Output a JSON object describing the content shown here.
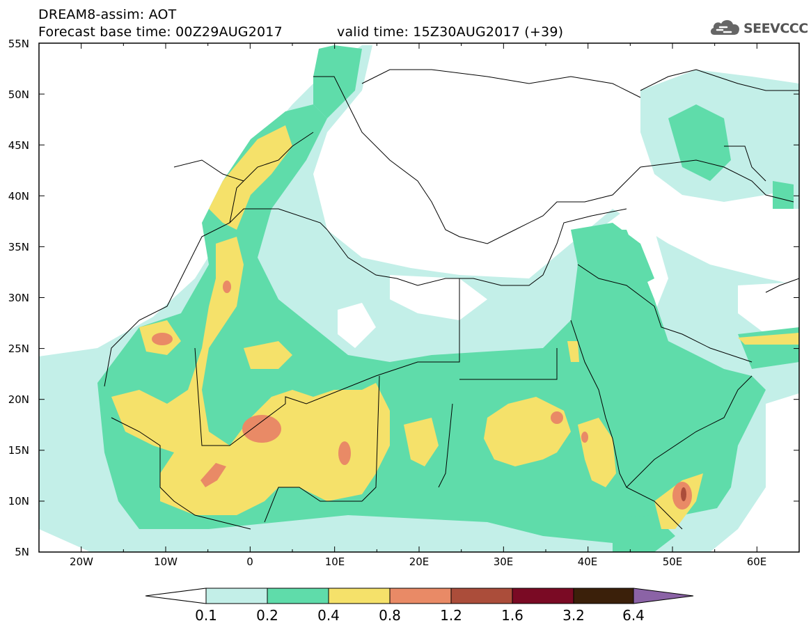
{
  "header": {
    "line1": "DREAM8-assim: AOT",
    "line2": "Forecast base time: 00Z29AUG2017",
    "line3": "valid time: 15Z30AUG2017 (+39)"
  },
  "logo": {
    "text": "SEEVCCC",
    "icon": "cloud-icon"
  },
  "map": {
    "lat_labels": [
      "55N",
      "50N",
      "45N",
      "40N",
      "35N",
      "30N",
      "25N",
      "20N",
      "15N",
      "10N",
      "5N"
    ],
    "lon_labels": [
      "20W",
      "10W",
      "0",
      "10E",
      "20E",
      "30E",
      "40E",
      "50E",
      "60E"
    ],
    "extent": {
      "lon": [
        -25,
        65
      ],
      "lat": [
        5,
        55
      ]
    }
  },
  "colorbar": {
    "labels": [
      "0.1",
      "0.2",
      "0.4",
      "0.8",
      "1.2",
      "1.6",
      "3.2",
      "6.4"
    ],
    "colors": [
      "#ffffff",
      "#c3efe8",
      "#5fdcaa",
      "#f5e16a",
      "#e98a66",
      "#ab4d3a",
      "#7a0a24",
      "#3b200a",
      "#8b63a6"
    ]
  }
}
